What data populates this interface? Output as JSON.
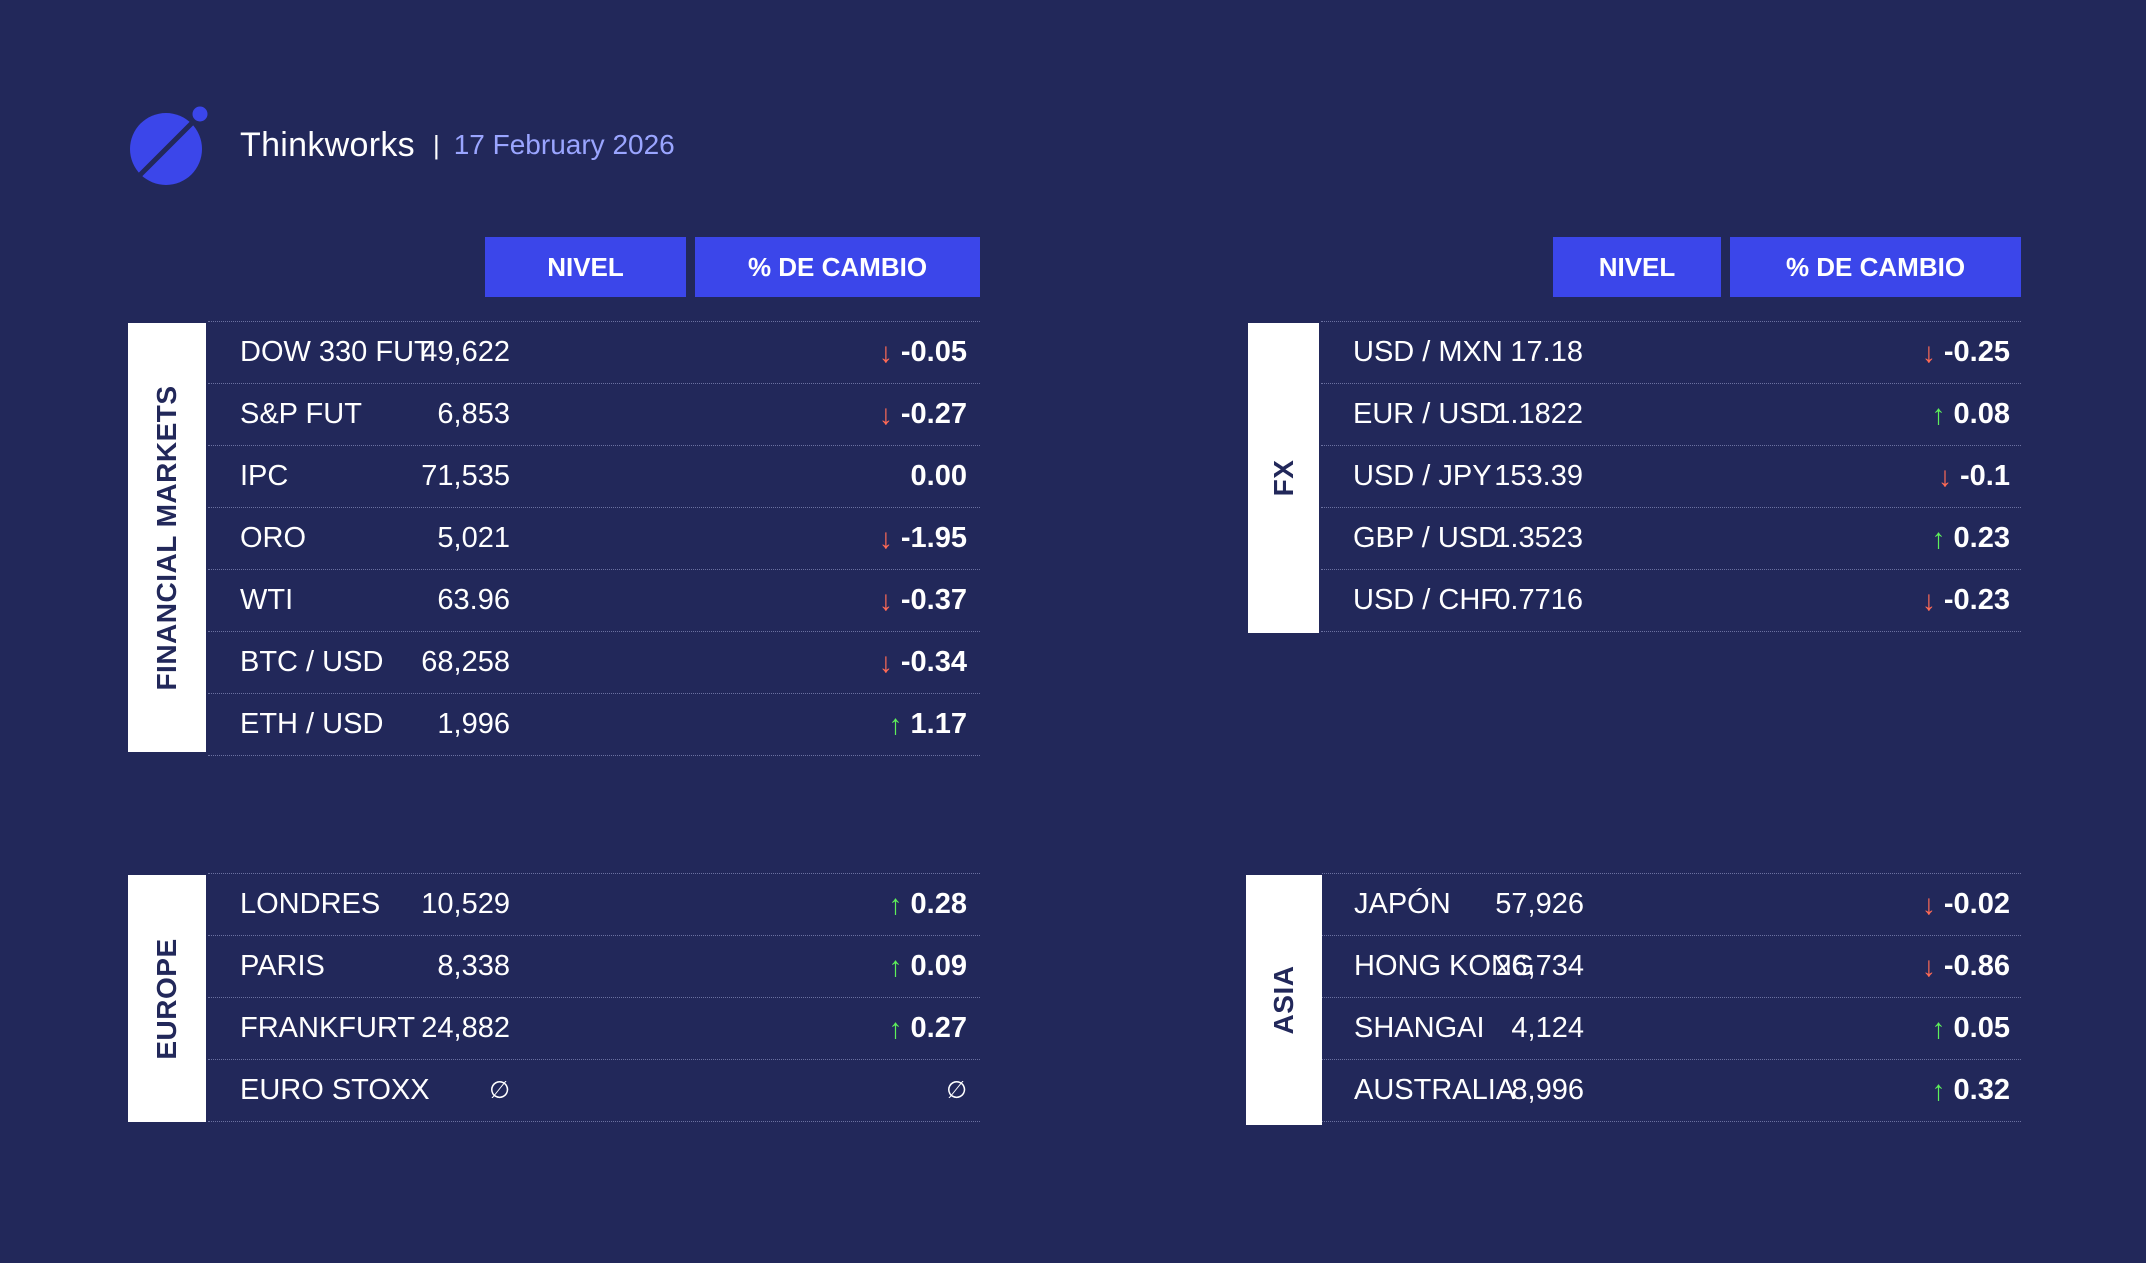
{
  "header": {
    "brand": "Thinkworks",
    "separator": "|",
    "date": "17 February 2026"
  },
  "columns": {
    "level": "NIVEL",
    "change": "% DE CAMBIO"
  },
  "panels": {
    "financial": {
      "label": "FINANCIAL MARKETS",
      "rows": [
        {
          "name": "DOW 330 FUT",
          "level": "49,622",
          "change": "-0.05",
          "dir": "down"
        },
        {
          "name": "S&P FUT",
          "level": "6,853",
          "change": "-0.27",
          "dir": "down"
        },
        {
          "name": "IPC",
          "level": "71,535",
          "change": "0.00",
          "dir": "none"
        },
        {
          "name": "ORO",
          "level": "5,021",
          "change": "-1.95",
          "dir": "down"
        },
        {
          "name": "WTI",
          "level": "63.96",
          "change": "-0.37",
          "dir": "down"
        },
        {
          "name": "BTC / USD",
          "level": "68,258",
          "change": "-0.34",
          "dir": "down"
        },
        {
          "name": "ETH / USD",
          "level": "1,996",
          "change": "1.17",
          "dir": "up"
        }
      ]
    },
    "fx": {
      "label": "FX",
      "rows": [
        {
          "name": "USD / MXN",
          "level": "17.18",
          "change": "-0.25",
          "dir": "down"
        },
        {
          "name": "EUR / USD",
          "level": "1.1822",
          "change": "0.08",
          "dir": "up"
        },
        {
          "name": "USD / JPY",
          "level": "153.39",
          "change": "-0.1",
          "dir": "down"
        },
        {
          "name": "GBP / USD",
          "level": "1.3523",
          "change": "0.23",
          "dir": "up"
        },
        {
          "name": "USD / CHF",
          "level": "0.7716",
          "change": "-0.23",
          "dir": "down"
        }
      ]
    },
    "europe": {
      "label": "EUROPE",
      "rows": [
        {
          "name": "LONDRES",
          "level": "10,529",
          "change": "0.28",
          "dir": "up"
        },
        {
          "name": "PARIS",
          "level": "8,338",
          "change": "0.09",
          "dir": "up"
        },
        {
          "name": "FRANKFURT",
          "level": "24,882",
          "change": "0.27",
          "dir": "up"
        },
        {
          "name": "EURO STOXX",
          "level": "∅",
          "change": "∅",
          "dir": "none"
        }
      ]
    },
    "asia": {
      "label": "ASIA",
      "rows": [
        {
          "name": "JAPÓN",
          "level": "57,926",
          "change": "-0.02",
          "dir": "down"
        },
        {
          "name": "HONG KONG",
          "level": "26,734",
          "change": "-0.86",
          "dir": "down"
        },
        {
          "name": "SHANGAI",
          "level": "4,124",
          "change": "0.05",
          "dir": "up"
        },
        {
          "name": "AUSTRALIA",
          "level": "8,996",
          "change": "0.32",
          "dir": "up"
        }
      ]
    }
  },
  "colors": {
    "background": "#22285a",
    "accent": "#3b46ea",
    "up": "#5ef05a",
    "down": "#ff6a55",
    "date": "#9aa5ff"
  },
  "icons": {
    "logo": "planet-logo-icon",
    "up": "arrow-up-icon",
    "down": "arrow-down-icon"
  }
}
